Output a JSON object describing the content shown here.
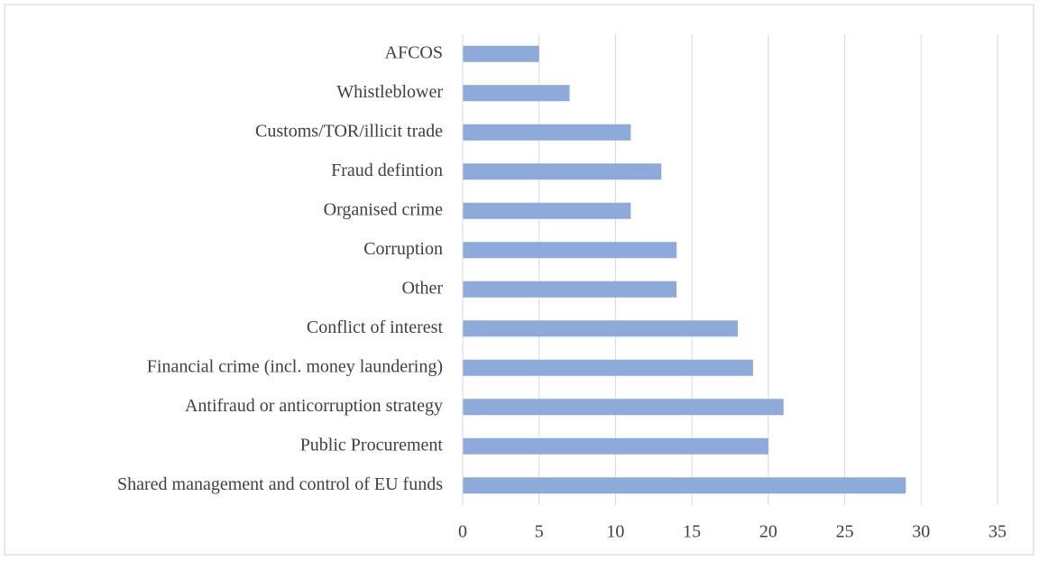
{
  "chart_data": {
    "type": "barh",
    "categories": [
      "AFCOS",
      "Whistleblower",
      "Customs/TOR/illicit trade",
      "Fraud defintion",
      "Organised crime",
      "Corruption",
      "Other",
      "Conflict of interest",
      "Financial crime (incl. money laundering)",
      "Antifraud or anticorruption strategy",
      "Public Procurement",
      "Shared management and control of EU funds"
    ],
    "values": [
      5,
      7,
      11,
      13,
      11,
      14,
      14,
      18,
      19,
      21,
      20,
      29
    ],
    "color": "#8eaadb",
    "xlim": [
      0,
      35
    ],
    "xticks": [
      0,
      5,
      10,
      15,
      20,
      25,
      30,
      35
    ],
    "grid": true
  }
}
